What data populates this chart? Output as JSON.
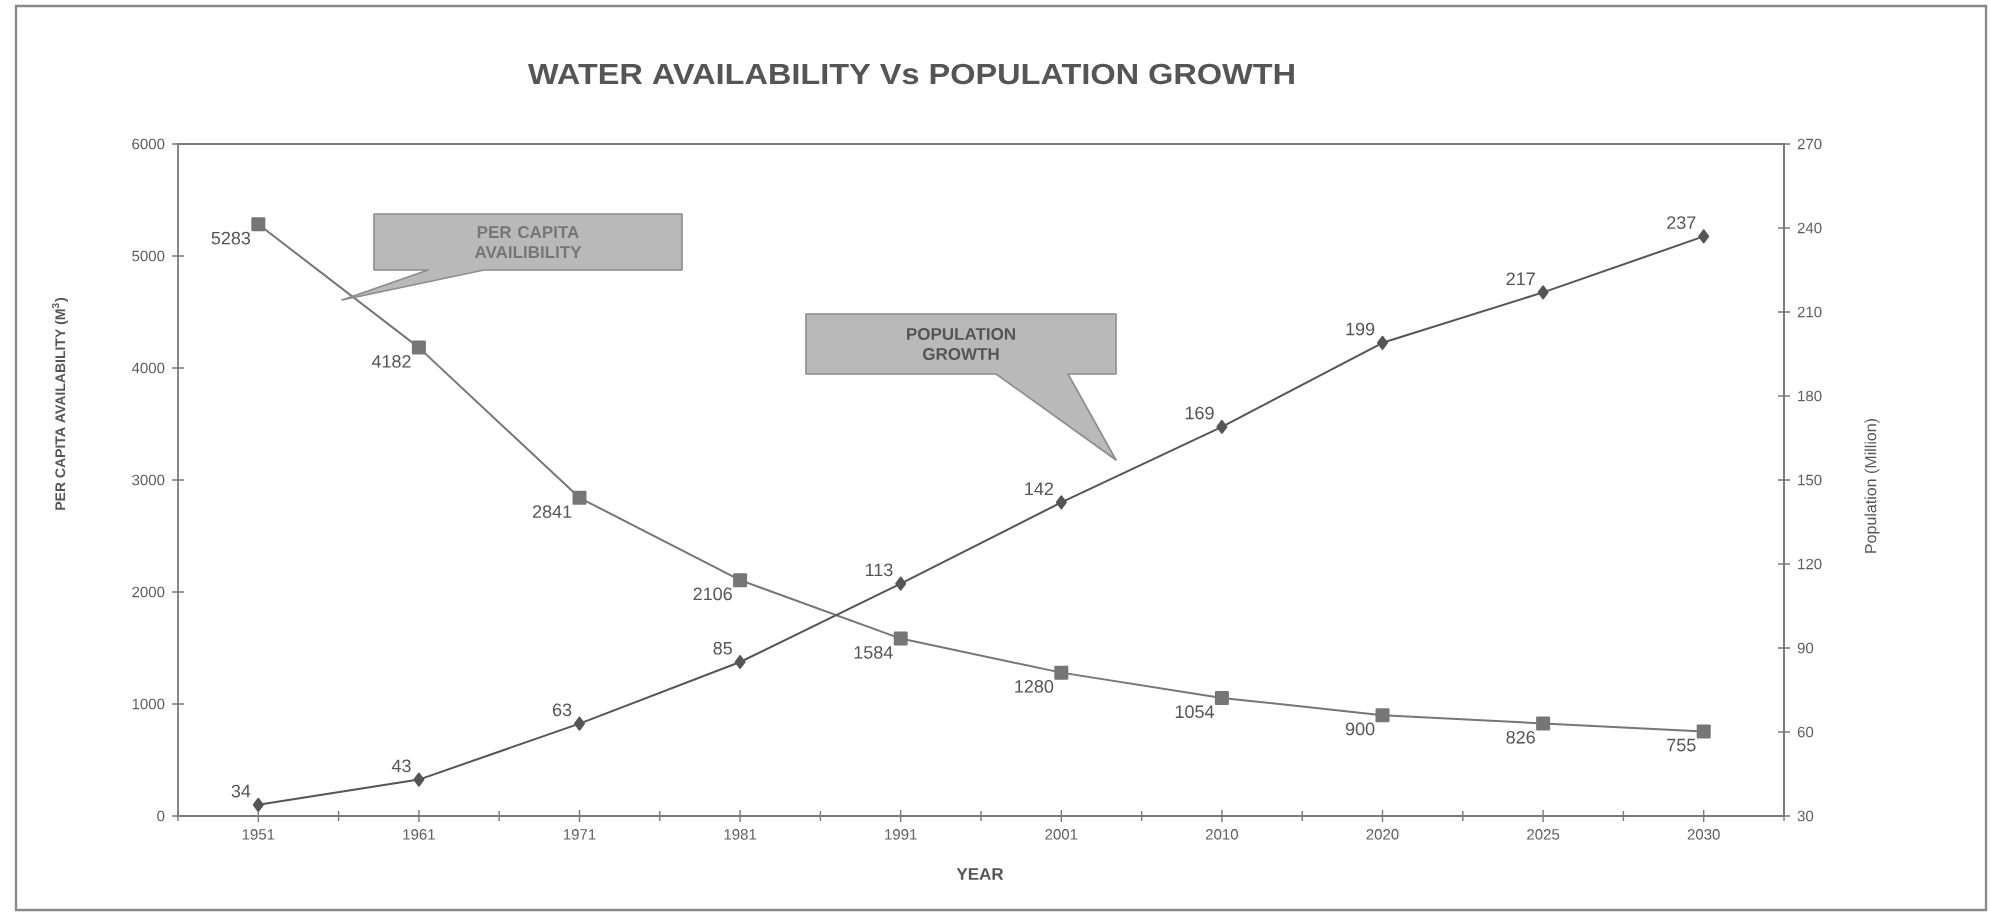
{
  "chart_data": {
    "type": "line",
    "title": "WATER AVAILABILITY Vs POPULATION GROWTH",
    "xlabel": "YEAR",
    "ylabel": "PER CAPITA AVAILABILITY (M$^{3}$)",
    "y2label": "Population (Million)",
    "categories": [
      "1951",
      "1961",
      "1971",
      "1981",
      "1991",
      "2001",
      "2010",
      "2020",
      "2025",
      "2030"
    ],
    "series": [
      {
        "name": "PER CAPITA AVAILIBILITY",
        "color": "#767676",
        "marker": "square",
        "values": [
          5283,
          4182,
          2841,
          2106,
          1584,
          1280,
          1054,
          900,
          826,
          755
        ]
      },
      {
        "name": "POPULATION GROWTH",
        "color": "#555555",
        "marker": "diamond",
        "axis": "y2",
        "values": [
          34,
          43,
          63,
          85,
          113,
          142,
          169,
          199,
          217,
          237
        ]
      }
    ],
    "ylim": [
      0,
      6000
    ],
    "yticks": [
      0,
      1000,
      2000,
      3000,
      4000,
      5000,
      6000
    ],
    "y2lim": [
      30,
      270
    ],
    "y2ticks": [
      30,
      60,
      90,
      120,
      150,
      180,
      210,
      240,
      270
    ],
    "data_labels": true
  }
}
